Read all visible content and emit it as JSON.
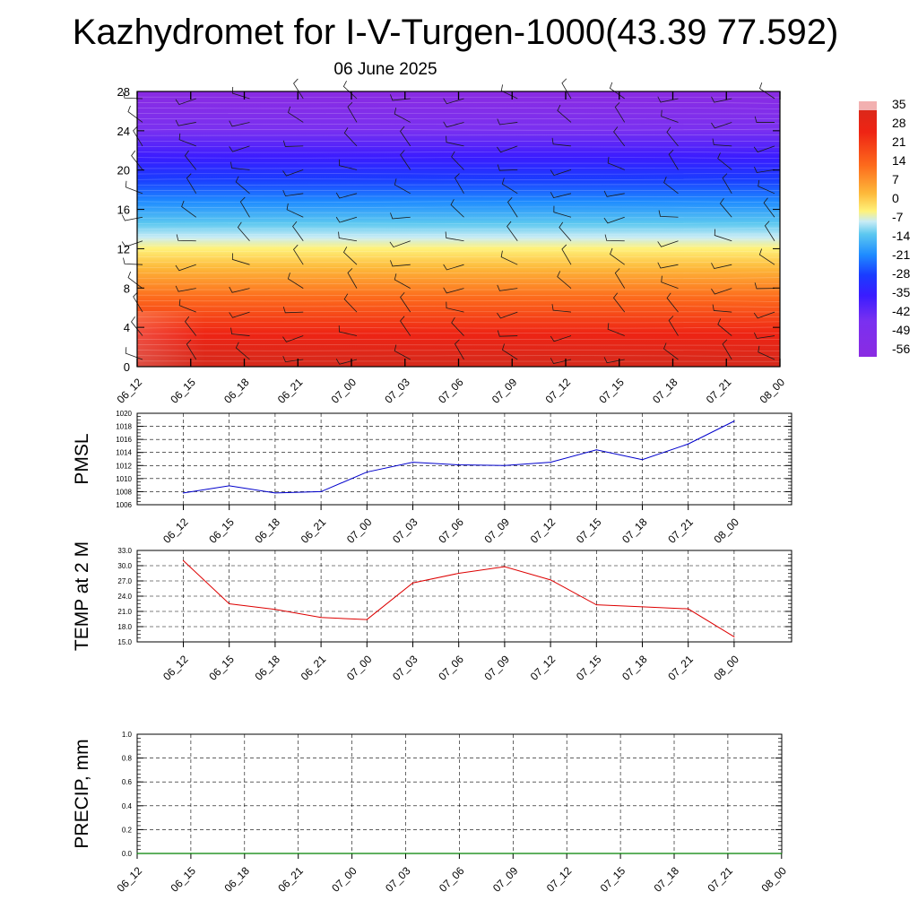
{
  "title": "Kazhydromet for I-V-Turgen-1000(43.39 77.592)",
  "subtitle": "06 June 2025",
  "chart_data": [
    {
      "type": "heatmap",
      "x_ticks": [
        "06_12",
        "06_15",
        "06_18",
        "06_21",
        "07_00",
        "07_03",
        "07_06",
        "07_09",
        "07_12",
        "07_15",
        "07_18",
        "07_21",
        "08_00"
      ],
      "y_ticks": [
        0,
        4,
        8,
        12,
        16,
        20,
        24,
        28
      ],
      "ylim": [
        0,
        28
      ],
      "colorbar_labels": [
        "35",
        "28",
        "21",
        "14",
        "7",
        "0",
        "-7",
        "-14",
        "-21",
        "-28",
        "-35",
        "-42",
        "-49",
        "-56"
      ],
      "colors": {
        "high": "#d7191c",
        "orange": "#fdae61",
        "yellow": "#fff27a",
        "light_blue": "#a6e0f5",
        "blue": "#1f5fff",
        "deep_blue": "#2a1cff",
        "violet": "#8a2be2"
      }
    },
    {
      "type": "line",
      "ylabel": "PMSL",
      "x": [
        "06_12",
        "06_15",
        "06_18",
        "06_21",
        "07_00",
        "07_03",
        "07_06",
        "07_09",
        "07_12",
        "07_15",
        "07_18",
        "07_21",
        "08_00"
      ],
      "y_ticks": [
        "1006",
        "1008",
        "1010",
        "1012",
        "1014",
        "1016",
        "1018",
        "1020"
      ],
      "ylim": [
        1006,
        1020
      ],
      "series": [
        {
          "values": [
            1007.8,
            1008.9,
            1007.8,
            1008.0,
            1011.0,
            1012.5,
            1012.1,
            1012.0,
            1012.5,
            1014.4,
            1012.9,
            1015.3,
            1018.8
          ],
          "color": "#0000cc"
        }
      ]
    },
    {
      "type": "line",
      "ylabel": "TEMP at 2 M",
      "x": [
        "06_12",
        "06_15",
        "06_18",
        "06_21",
        "07_00",
        "07_03",
        "07_06",
        "07_09",
        "07_12",
        "07_15",
        "07_18",
        "07_21",
        "08_00"
      ],
      "y_ticks": [
        "15.0",
        "18.0",
        "21.0",
        "24.0",
        "27.0",
        "30.0",
        "33.0"
      ],
      "ylim": [
        15,
        33
      ],
      "series": [
        {
          "values": [
            31.0,
            22.5,
            21.4,
            19.8,
            19.4,
            26.6,
            28.5,
            29.8,
            27.2,
            22.3,
            21.9,
            21.5,
            16.0
          ],
          "color": "#dd0000"
        }
      ]
    },
    {
      "type": "line",
      "ylabel": "PRECIP, mm",
      "x_ticks": [
        "06_12",
        "06_15",
        "06_18",
        "06_21",
        "07_00",
        "07_03",
        "07_06",
        "07_09",
        "07_12",
        "07_15",
        "07_18",
        "07_21",
        "08_00"
      ],
      "y_ticks": [
        "0.0",
        "0.2",
        "0.4",
        "0.6",
        "0.8",
        "1.0"
      ],
      "ylim": [
        0,
        1
      ],
      "series": [
        {
          "values": [
            0,
            0,
            0,
            0,
            0,
            0,
            0,
            0,
            0,
            0,
            0,
            0,
            0
          ],
          "color": "#008000"
        }
      ]
    }
  ]
}
